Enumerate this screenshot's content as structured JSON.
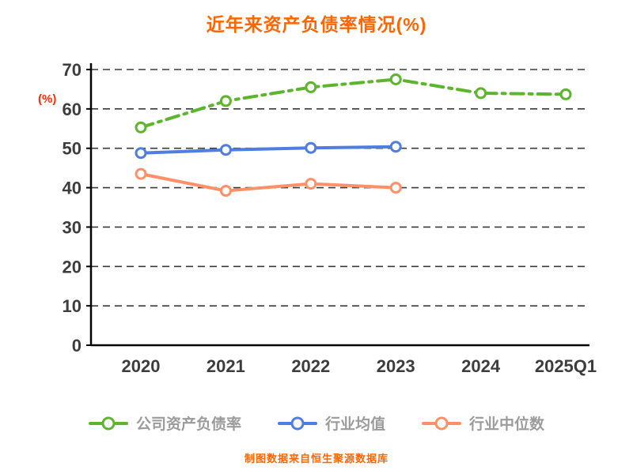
{
  "chart": {
    "title": "近年来资产负债率情况(%)",
    "y_axis_unit": "(%)",
    "footer": "制图数据来自恒生聚源数据库"
  },
  "colors": {
    "title": "#ff6600",
    "y_unit": "#ff2a00",
    "axis": "#000000",
    "tick_label": "#3d3d3d",
    "grid": "#3a3a3a",
    "footer": "#ff6600",
    "legend_text": "#9b9b9b"
  },
  "chart_data": {
    "type": "line",
    "title": "近年来资产负债率情况(%)",
    "xlabel": "",
    "ylabel": "(%)",
    "categories": [
      "2020",
      "2021",
      "2022",
      "2023",
      "2024",
      "2025Q1"
    ],
    "series": [
      {
        "name": "公司资产负债率",
        "color": "#5cb52d",
        "style": "dashdot",
        "values": [
          55.3,
          62.0,
          65.5,
          67.5,
          64.0,
          63.7
        ]
      },
      {
        "name": "行业均值",
        "color": "#4f7de0",
        "style": "solid",
        "values": [
          48.8,
          49.6,
          50.1,
          50.4,
          null,
          null
        ]
      },
      {
        "name": "行业中位数",
        "color": "#ff9068",
        "style": "solid",
        "values": [
          43.5,
          39.2,
          41.0,
          40.0,
          null,
          null
        ]
      }
    ],
    "ylim": [
      0,
      70
    ],
    "yticks": [
      0,
      10,
      20,
      30,
      40,
      50,
      60,
      70
    ],
    "grid": "dashed-horizontal",
    "legend_position": "bottom",
    "footer": "制图数据来自恒生聚源数据库"
  }
}
